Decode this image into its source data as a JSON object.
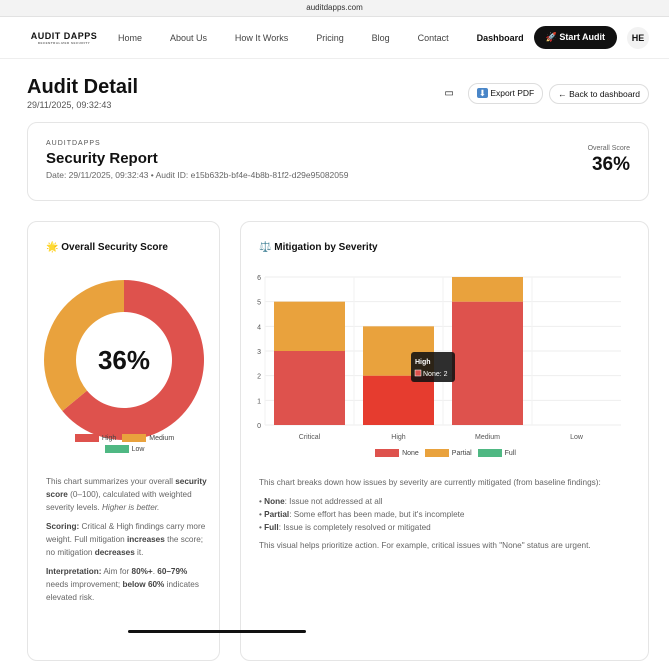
{
  "browser": {
    "url": "auditdapps.com"
  },
  "nav": {
    "logo": "AUDIT DAPPS",
    "logo_tagline": "DECENTRALIZED SECURITY",
    "links": [
      "Home",
      "About Us",
      "How It Works",
      "Pricing",
      "Blog",
      "Contact",
      "Dashboard"
    ],
    "active": "Dashboard",
    "start_audit": "Start Audit",
    "avatar": "HE"
  },
  "page": {
    "title": "Audit Detail",
    "date": "29/11/2025, 09:32:43",
    "export_pdf": "Export PDF",
    "back": "← Back to dashboard"
  },
  "report": {
    "kicker": "AUDITDAPPS",
    "title": "Security Report",
    "meta": "Date: 29/11/2025, 09:32:43 • Audit ID: e15b632b-bf4e-4b8b-81f2-d29e95082059",
    "score_label": "Overall Score",
    "score": "36%"
  },
  "colors": {
    "high": "#de524d",
    "medium": "#e9a23d",
    "low": "#4fb883",
    "none": "#de524d",
    "partial": "#e9a23d",
    "full": "#4fb883"
  },
  "score_card": {
    "title": "Overall Security Score",
    "icon": "star-icon",
    "center": "36%",
    "desc1_pre": "This chart summarizes your overall ",
    "desc1_b": "security score",
    "desc1_mid": " (0–100), calculated with weighted severity levels. ",
    "desc1_i": "Higher is better.",
    "desc2_b": "Scoring:",
    "desc2_a": " Critical & High findings carry more weight. Full mitigation ",
    "desc2_b2": "increases",
    "desc2_c": " the score; no mitigation ",
    "desc2_b3": "decreases",
    "desc2_d": " it.",
    "desc3_b": "Interpretation:",
    "desc3_a": " Aim for ",
    "desc3_b2": "80%+",
    "desc3_c": ". ",
    "desc3_b3": "60–79%",
    "desc3_d": " needs improvement; ",
    "desc3_b4": "below 60%",
    "desc3_e": " indicates elevated risk."
  },
  "mitigation_card": {
    "title": "Mitigation by Severity",
    "icon": "scales-icon",
    "intro": "This chart breaks down how issues by severity are currently mitigated (from baseline findings):",
    "items": [
      {
        "b": "None",
        "t": ": Issue not addressed at all"
      },
      {
        "b": "Partial",
        "t": ": Some effort has been made, but it's incomplete"
      },
      {
        "b": "Full",
        "t": ": Issue is completely resolved or mitigated"
      }
    ],
    "outro": "This visual helps prioritize action. For example, critical issues with \"None\" status are urgent."
  },
  "chart_data": [
    {
      "type": "pie",
      "variant": "donut",
      "categories": [
        "High",
        "Medium",
        "Low"
      ],
      "values": [
        64,
        36,
        0
      ],
      "center_label": "36%",
      "legend": "bottom"
    },
    {
      "type": "bar",
      "stacked": true,
      "categories": [
        "Critical",
        "High",
        "Medium",
        "Low"
      ],
      "series": [
        {
          "name": "None",
          "values": [
            3,
            2,
            5,
            0
          ]
        },
        {
          "name": "Partial",
          "values": [
            2,
            2,
            1,
            0
          ]
        },
        {
          "name": "Full",
          "values": [
            0,
            0,
            0,
            0
          ]
        }
      ],
      "ylim": [
        0,
        6
      ],
      "yticks": [
        "0",
        "1",
        "2",
        "3",
        "4",
        "5",
        "6"
      ],
      "grid": true,
      "legend": "bottom",
      "tooltip": {
        "title": "High",
        "text": "None: 2"
      }
    }
  ]
}
